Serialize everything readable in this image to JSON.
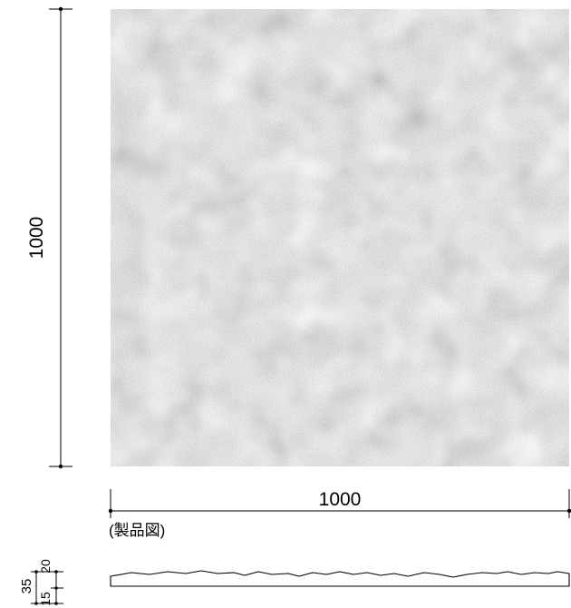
{
  "drawing": {
    "height_dimension": "1000",
    "width_dimension": "1000",
    "caption": "(製品図)",
    "section_dimensions": {
      "thickness_total": "35",
      "part_a": "15",
      "part_b": "20"
    }
  },
  "colors": {
    "line": "#000000",
    "texture_light": "#e6e6e6",
    "texture_dark": "#9a9a9a"
  }
}
